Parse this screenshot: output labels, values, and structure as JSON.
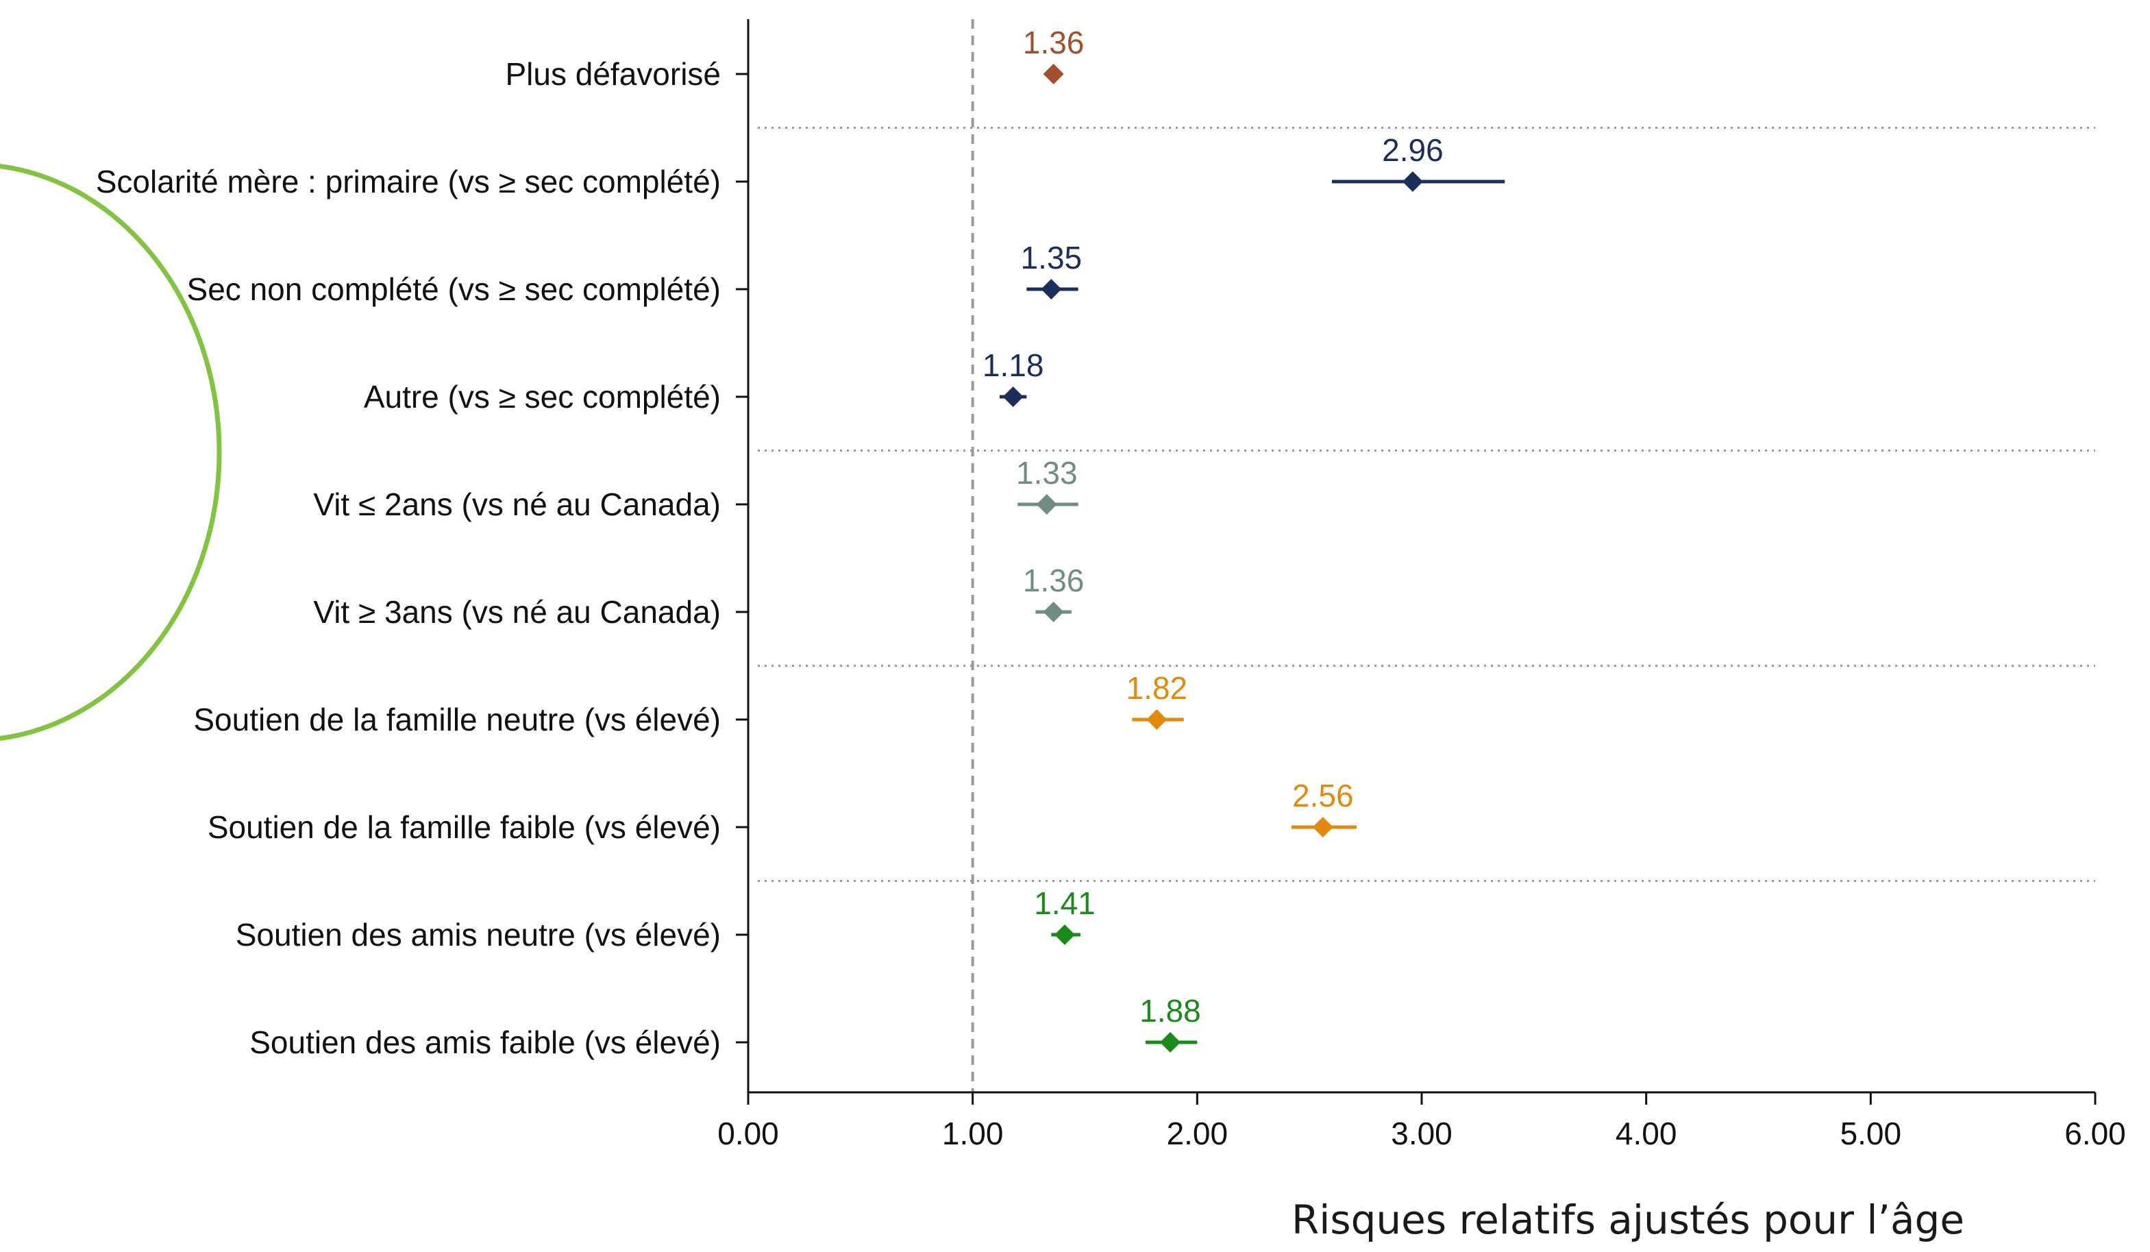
{
  "chart_data": {
    "type": "scatter",
    "title": "",
    "xlabel": "Risques relatifs ajustés pour l’âge",
    "ylabel": "",
    "xlim": [
      0,
      6
    ],
    "x_ticks": [
      "0.00",
      "1.00",
      "2.00",
      "3.00",
      "4.00",
      "5.00",
      "6.00"
    ],
    "reference_line": 1.0,
    "grid": false,
    "group_separators": "dotted",
    "legend": "none",
    "rows": [
      {
        "label": "Plus défavorisé",
        "value": 1.36,
        "value_label": "1.36",
        "ci": [
          1.33,
          1.39
        ],
        "group": "defavorisation",
        "color": "#a0502c"
      },
      {
        "label": "Scolarité mère : primaire (vs ≥ sec complété)",
        "value": 2.96,
        "value_label": "2.96",
        "ci": [
          2.6,
          3.37
        ],
        "group": "scolarite",
        "color": "#1c2f5c"
      },
      {
        "label": "Sec non complété (vs ≥ sec complété)",
        "value": 1.35,
        "value_label": "1.35",
        "ci": [
          1.24,
          1.47
        ],
        "group": "scolarite",
        "color": "#1c2f5c"
      },
      {
        "label": "Autre (vs ≥ sec complété)",
        "value": 1.18,
        "value_label": "1.18",
        "ci": [
          1.12,
          1.24
        ],
        "group": "scolarite",
        "color": "#1c2f5c"
      },
      {
        "label": "Vit ≤ 2ans (vs né au Canada)",
        "value": 1.33,
        "value_label": "1.33",
        "ci": [
          1.2,
          1.47
        ],
        "group": "immigration",
        "color": "#6f8d80"
      },
      {
        "label": "Vit ≥ 3ans (vs né au Canada)",
        "value": 1.36,
        "value_label": "1.36",
        "ci": [
          1.28,
          1.44
        ],
        "group": "immigration",
        "color": "#6f8d80"
      },
      {
        "label": "Soutien de la famille neutre (vs élevé)",
        "value": 1.82,
        "value_label": "1.82",
        "ci": [
          1.71,
          1.94
        ],
        "group": "famille",
        "color": "#e28a10"
      },
      {
        "label": "Soutien de la famille faible (vs élevé)",
        "value": 2.56,
        "value_label": "2.56",
        "ci": [
          2.42,
          2.71
        ],
        "group": "famille",
        "color": "#e28a10"
      },
      {
        "label": "Soutien des amis neutre (vs élevé)",
        "value": 1.41,
        "value_label": "1.41",
        "ci": [
          1.35,
          1.48
        ],
        "group": "amis",
        "color": "#1a8a1a"
      },
      {
        "label": "Soutien des amis faible (vs élevé)",
        "value": 1.88,
        "value_label": "1.88",
        "ci": [
          1.77,
          2.0
        ],
        "group": "amis",
        "color": "#1a8a1a"
      }
    ],
    "separators_after_rows": [
      0,
      3,
      5,
      7
    ]
  },
  "decoration": {
    "arc_color": "#82c341"
  }
}
